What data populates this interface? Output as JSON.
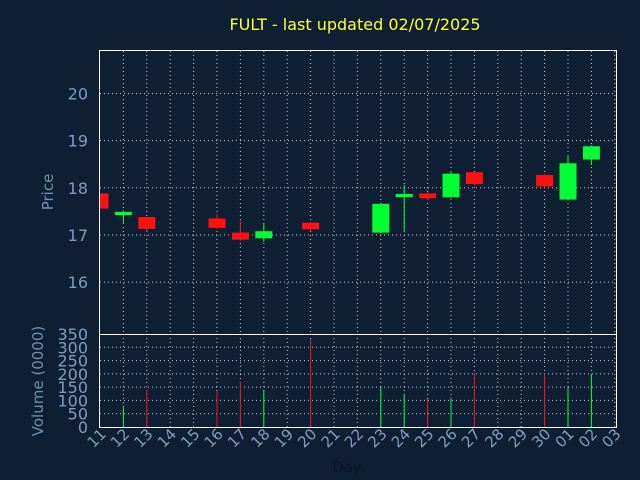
{
  "chart_data": {
    "type": "candlestick",
    "title": "FULT - last updated 02/07/2025",
    "price_panel": {
      "ylabel": "Price",
      "ylim": [
        14.9,
        20.9
      ],
      "yticks": [
        16,
        17,
        18,
        19,
        20
      ]
    },
    "volume_panel": {
      "ylabel": "Volume (0000)",
      "ylim": [
        0,
        350
      ],
      "yticks": [
        0,
        50,
        100,
        150,
        200,
        250,
        300,
        350
      ]
    },
    "xlabel": "Day",
    "x_ticks": [
      "11",
      "12",
      "13",
      "14",
      "15",
      "16",
      "17",
      "18",
      "19",
      "20",
      "21",
      "22",
      "23",
      "24",
      "25",
      "26",
      "27",
      "28",
      "29",
      "30",
      "01",
      "02",
      "03"
    ],
    "colors": {
      "up": "#00ff33",
      "down": "#ff1111",
      "grid": "#ffffff",
      "background": "#0f1f33"
    },
    "candles": [
      {
        "day": "11",
        "open": 17.88,
        "close": 17.56,
        "high": 17.88,
        "low": 17.56,
        "volume": 0
      },
      {
        "day": "12",
        "open": 17.42,
        "close": 17.49,
        "high": 17.52,
        "low": 17.25,
        "volume": 80
      },
      {
        "day": "13",
        "open": 17.38,
        "close": 17.13,
        "high": 17.38,
        "low": 17.08,
        "volume": 140
      },
      {
        "day": "16",
        "open": 17.35,
        "close": 17.15,
        "high": 17.45,
        "low": 17.12,
        "volume": 135
      },
      {
        "day": "17",
        "open": 17.05,
        "close": 16.9,
        "high": 17.3,
        "low": 16.88,
        "volume": 170
      },
      {
        "day": "18",
        "open": 16.93,
        "close": 17.08,
        "high": 17.25,
        "low": 16.85,
        "volume": 140
      },
      {
        "day": "20",
        "open": 17.26,
        "close": 17.12,
        "high": 17.28,
        "low": 17.08,
        "volume": 330
      },
      {
        "day": "23",
        "open": 17.05,
        "close": 17.66,
        "high": 17.68,
        "low": 17.04,
        "volume": 150
      },
      {
        "day": "24",
        "open": 17.8,
        "close": 17.87,
        "high": 18.06,
        "low": 17.08,
        "volume": 125
      },
      {
        "day": "25",
        "open": 17.88,
        "close": 17.78,
        "high": 17.9,
        "low": 17.74,
        "volume": 105
      },
      {
        "day": "26",
        "open": 17.8,
        "close": 18.3,
        "high": 18.35,
        "low": 17.78,
        "volume": 110
      },
      {
        "day": "27",
        "open": 18.33,
        "close": 18.08,
        "high": 18.33,
        "low": 18.05,
        "volume": 205
      },
      {
        "day": "30",
        "open": 18.27,
        "close": 18.03,
        "high": 18.28,
        "low": 18.0,
        "volume": 200
      },
      {
        "day": "01",
        "open": 17.75,
        "close": 18.52,
        "high": 18.7,
        "low": 17.74,
        "volume": 150
      },
      {
        "day": "02",
        "open": 18.6,
        "close": 18.88,
        "high": 18.9,
        "low": 18.48,
        "volume": 200
      }
    ]
  }
}
